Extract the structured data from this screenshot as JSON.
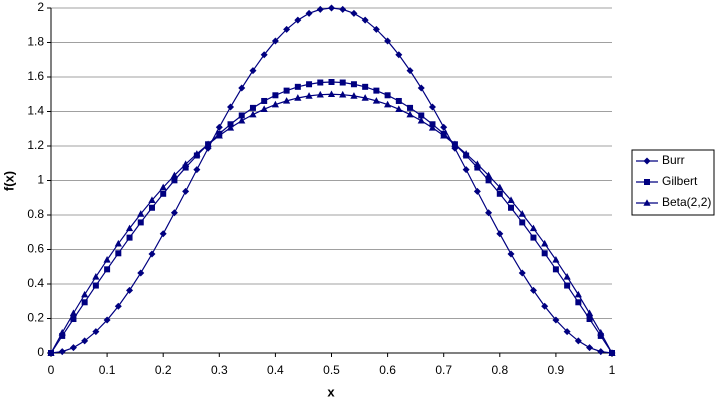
{
  "chart_data": {
    "type": "line",
    "x_label": "x",
    "y_label": "f(x)",
    "x": [
      0,
      0.02,
      0.04,
      0.06,
      0.08,
      0.1,
      0.12,
      0.14,
      0.16,
      0.18,
      0.2,
      0.22,
      0.24,
      0.26,
      0.28,
      0.3,
      0.32,
      0.34,
      0.36,
      0.38,
      0.4,
      0.42,
      0.44,
      0.46,
      0.48,
      0.5,
      0.52,
      0.54,
      0.56,
      0.58,
      0.6,
      0.62,
      0.64,
      0.66,
      0.68,
      0.7,
      0.72,
      0.74,
      0.76,
      0.78,
      0.8,
      0.82,
      0.84,
      0.86,
      0.88,
      0.9,
      0.92,
      0.94,
      0.96,
      0.98,
      1
    ],
    "series": [
      {
        "name": "Burr",
        "color": "#000080",
        "marker": "diamond",
        "values": [
          0,
          0.008,
          0.031,
          0.07,
          0.124,
          0.191,
          0.271,
          0.363,
          0.464,
          0.574,
          0.691,
          0.813,
          0.937,
          1.063,
          1.187,
          1.309,
          1.426,
          1.536,
          1.637,
          1.729,
          1.809,
          1.876,
          1.93,
          1.969,
          1.992,
          2,
          1.992,
          1.969,
          1.93,
          1.876,
          1.809,
          1.729,
          1.637,
          1.536,
          1.426,
          1.309,
          1.187,
          1.063,
          0.937,
          0.813,
          0.691,
          0.574,
          0.464,
          0.363,
          0.271,
          0.191,
          0.124,
          0.07,
          0.031,
          0.008,
          0
        ]
      },
      {
        "name": "Gilbert",
        "color": "#000080",
        "marker": "square",
        "values": [
          0,
          0.099,
          0.197,
          0.294,
          0.391,
          0.485,
          0.578,
          0.669,
          0.757,
          0.842,
          0.923,
          1.001,
          1.075,
          1.145,
          1.21,
          1.271,
          1.326,
          1.377,
          1.421,
          1.461,
          1.494,
          1.521,
          1.543,
          1.558,
          1.568,
          1.571,
          1.568,
          1.558,
          1.543,
          1.521,
          1.494,
          1.461,
          1.421,
          1.377,
          1.326,
          1.271,
          1.21,
          1.145,
          1.075,
          1.001,
          0.923,
          0.842,
          0.757,
          0.669,
          0.578,
          0.485,
          0.391,
          0.294,
          0.197,
          0.099,
          0
        ]
      },
      {
        "name": "Beta(2,2)",
        "color": "#000080",
        "marker": "triangle",
        "values": [
          0,
          0.1176,
          0.2304,
          0.3384,
          0.4416,
          0.54,
          0.6336,
          0.7224,
          0.8064,
          0.8856,
          0.96,
          1.0296,
          1.0944,
          1.1544,
          1.2096,
          1.26,
          1.3056,
          1.3464,
          1.3824,
          1.4136,
          1.44,
          1.4616,
          1.4784,
          1.4904,
          1.4976,
          1.5,
          1.4976,
          1.4904,
          1.4784,
          1.4616,
          1.44,
          1.4136,
          1.3824,
          1.3464,
          1.3056,
          1.26,
          1.2096,
          1.1544,
          1.0944,
          1.0296,
          0.96,
          0.8856,
          0.8064,
          0.7224,
          0.6336,
          0.54,
          0.4416,
          0.3384,
          0.2304,
          0.1176,
          0
        ]
      }
    ],
    "xlim": [
      0,
      1
    ],
    "ylim": [
      0,
      2
    ],
    "xticks": [
      0,
      0.1,
      0.2,
      0.3,
      0.4,
      0.5,
      0.6,
      0.7,
      0.8,
      0.9,
      1
    ],
    "yticks": [
      0,
      0.2,
      0.4,
      0.6,
      0.8,
      1,
      1.2,
      1.4,
      1.6,
      1.8,
      2
    ],
    "grid": true,
    "legend": "right"
  }
}
